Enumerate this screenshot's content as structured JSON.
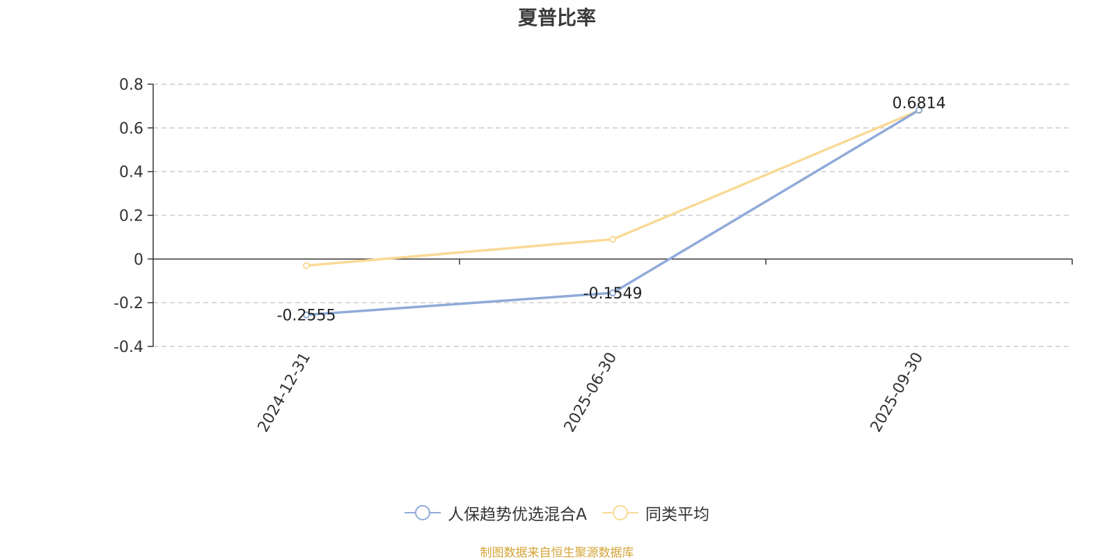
{
  "chart_data": {
    "type": "line",
    "title": "夏普比率",
    "categories": [
      "2024-12-31",
      "2025-06-30",
      "2025-09-30"
    ],
    "y_ticks": [
      "0.8",
      "0.6",
      "0.4",
      "0.2",
      "0",
      "-0.2",
      "-0.4"
    ],
    "ylim": [
      -0.4,
      0.8
    ],
    "grid": true,
    "legend_position": "bottom-center",
    "series": [
      {
        "name": "人保趋势优选混合A",
        "values": [
          -0.2555,
          -0.1549,
          0.6814
        ],
        "labels": [
          "-0.2555",
          "-0.1549",
          "0.6814"
        ],
        "color": "#8eaad8"
      },
      {
        "name": "同类平均",
        "values": [
          -0.03,
          0.09,
          0.68
        ],
        "color": "#f9d995"
      }
    ]
  },
  "source_note": "制图数据来自恒生聚源数据库"
}
